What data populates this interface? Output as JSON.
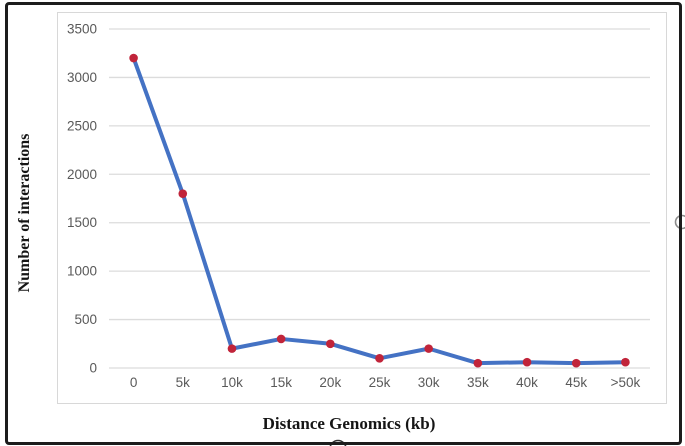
{
  "chart_data": {
    "type": "line",
    "title": "",
    "xlabel": "Distance Genomics (kb)",
    "ylabel": "Number of interactions",
    "categories": [
      "0",
      "5k",
      "10k",
      "15k",
      "20k",
      "25k",
      "30k",
      "35k",
      "40k",
      "45k",
      ">50k"
    ],
    "series": [
      {
        "name": "Number of interactions",
        "values": [
          3200,
          1800,
          200,
          300,
          250,
          100,
          200,
          50,
          60,
          50,
          60
        ]
      }
    ],
    "ylim": [
      0,
      3500
    ],
    "yticks": [
      0,
      500,
      1000,
      1500,
      2000,
      2500,
      3000,
      3500
    ],
    "grid": true,
    "legend_position": "none",
    "marker_style": "circle",
    "colors": {
      "line": "#4472C4",
      "marker": "#C1243A",
      "gridline": "#DCDCDC",
      "tick_label": "#595959",
      "plot_border": "#D8D8D8",
      "frame_border": "#1C1C1C",
      "axis_title": "#151515",
      "background": "#FFFFFF"
    }
  },
  "artifacts": {
    "right_edge_mark": "cropped-circle",
    "bottom_edge_mark": "cropped-circle"
  }
}
